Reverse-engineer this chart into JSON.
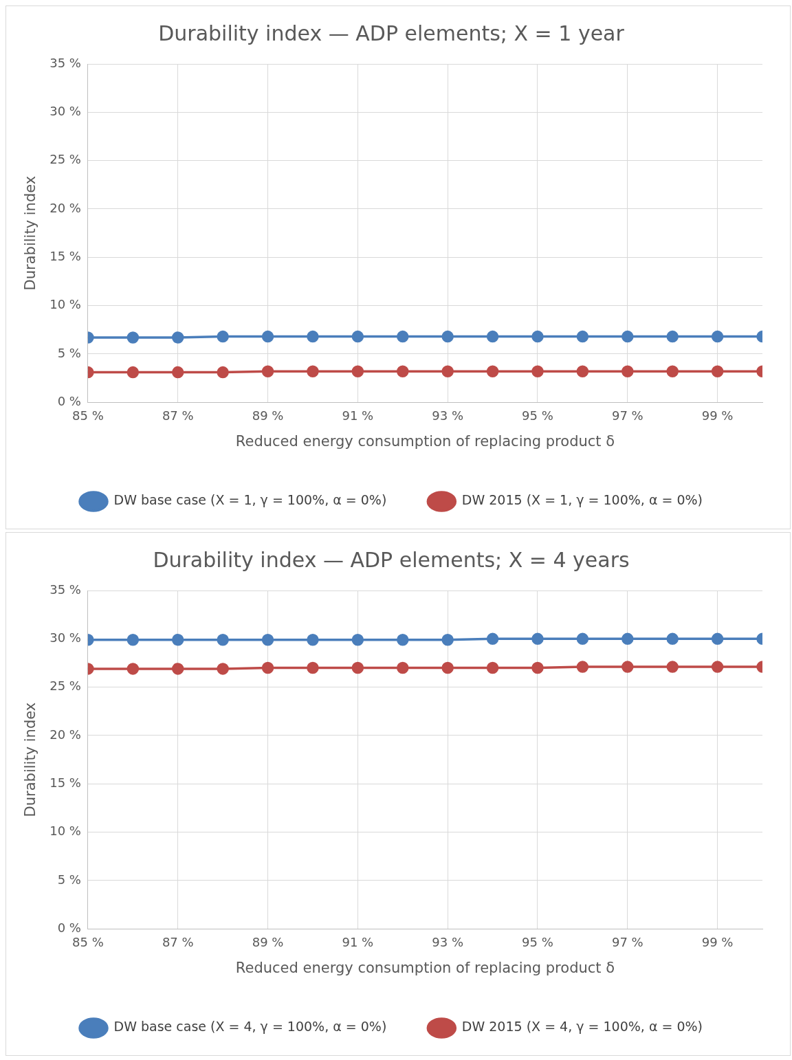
{
  "chart_data": [
    {
      "type": "line",
      "title": "Durability index — ADP elements; X = 1 year",
      "xlabel": "Reduced energy consumption of replacing product δ",
      "ylabel": "Durability index",
      "x": [
        85,
        86,
        87,
        88,
        89,
        90,
        91,
        92,
        93,
        94,
        95,
        96,
        97,
        98,
        99,
        100
      ],
      "series": [
        {
          "name": "DW base case (X = 1, γ = 100%, α = 0%)",
          "color": "#4a7ebb",
          "values": [
            6.7,
            6.7,
            6.7,
            6.8,
            6.8,
            6.8,
            6.8,
            6.8,
            6.8,
            6.8,
            6.8,
            6.8,
            6.8,
            6.8,
            6.8,
            6.8
          ]
        },
        {
          "name": "DW 2015 (X = 1, γ = 100%, α = 0%)",
          "color": "#be4b48",
          "values": [
            3.1,
            3.1,
            3.1,
            3.1,
            3.2,
            3.2,
            3.2,
            3.2,
            3.2,
            3.2,
            3.2,
            3.2,
            3.2,
            3.2,
            3.2,
            3.2
          ]
        }
      ],
      "xlim": [
        85,
        100
      ],
      "xticks": [
        {
          "value": 85,
          "label": "85 %"
        },
        {
          "value": 87,
          "label": "87 %"
        },
        {
          "value": 89,
          "label": "89 %"
        },
        {
          "value": 91,
          "label": "91 %"
        },
        {
          "value": 93,
          "label": "93 %"
        },
        {
          "value": 95,
          "label": "95 %"
        },
        {
          "value": 97,
          "label": "97 %"
        },
        {
          "value": 99,
          "label": "99 %"
        }
      ],
      "ylim": [
        0,
        35
      ],
      "yticks": [
        {
          "value": 0,
          "label": "0 %"
        },
        {
          "value": 5,
          "label": "5 %"
        },
        {
          "value": 10,
          "label": "10 %"
        },
        {
          "value": 15,
          "label": "15 %"
        },
        {
          "value": 20,
          "label": "20 %"
        },
        {
          "value": 25,
          "label": "25 %"
        },
        {
          "value": 30,
          "label": "30 %"
        },
        {
          "value": 35,
          "label": "35 %"
        }
      ],
      "grid": true,
      "legend": "bottom",
      "marker": "circle",
      "line_style": "solid"
    },
    {
      "type": "line",
      "title": "Durability index — ADP elements; X = 4 years",
      "xlabel": "Reduced energy consumption of replacing product δ",
      "ylabel": "Durability index",
      "x": [
        85,
        86,
        87,
        88,
        89,
        90,
        91,
        92,
        93,
        94,
        95,
        96,
        97,
        98,
        99,
        100
      ],
      "series": [
        {
          "name": "DW base case (X = 4, γ = 100%, α = 0%)",
          "color": "#4a7ebb",
          "values": [
            29.9,
            29.9,
            29.9,
            29.9,
            29.9,
            29.9,
            29.9,
            29.9,
            29.9,
            30.0,
            30.0,
            30.0,
            30.0,
            30.0,
            30.0,
            30.0
          ]
        },
        {
          "name": "DW 2015 (X = 4, γ = 100%, α = 0%)",
          "color": "#be4b48",
          "values": [
            26.9,
            26.9,
            26.9,
            26.9,
            27.0,
            27.0,
            27.0,
            27.0,
            27.0,
            27.0,
            27.0,
            27.1,
            27.1,
            27.1,
            27.1,
            27.1
          ]
        }
      ],
      "xlim": [
        85,
        100
      ],
      "xticks": [
        {
          "value": 85,
          "label": "85 %"
        },
        {
          "value": 87,
          "label": "87 %"
        },
        {
          "value": 89,
          "label": "89 %"
        },
        {
          "value": 91,
          "label": "91 %"
        },
        {
          "value": 93,
          "label": "93 %"
        },
        {
          "value": 95,
          "label": "95 %"
        },
        {
          "value": 97,
          "label": "97 %"
        },
        {
          "value": 99,
          "label": "99 %"
        }
      ],
      "ylim": [
        0,
        35
      ],
      "yticks": [
        {
          "value": 0,
          "label": "0 %"
        },
        {
          "value": 5,
          "label": "5 %"
        },
        {
          "value": 10,
          "label": "10 %"
        },
        {
          "value": 15,
          "label": "15 %"
        },
        {
          "value": 20,
          "label": "20 %"
        },
        {
          "value": 25,
          "label": "25 %"
        },
        {
          "value": 30,
          "label": "30 %"
        },
        {
          "value": 35,
          "label": "35 %"
        }
      ],
      "grid": true,
      "legend": "bottom",
      "marker": "circle",
      "line_style": "solid"
    }
  ]
}
